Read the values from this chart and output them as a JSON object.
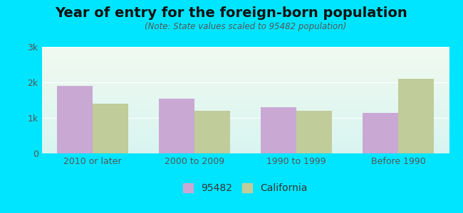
{
  "title": "Year of entry for the foreign-born population",
  "subtitle": "(Note: State values scaled to 95482 population)",
  "categories": [
    "2010 or later",
    "2000 to 2009",
    "1990 to 1999",
    "Before 1990"
  ],
  "values_95482": [
    1900,
    1550,
    1300,
    1150
  ],
  "values_california": [
    1400,
    1200,
    1200,
    2100
  ],
  "bar_color_95482": "#c9a8d4",
  "bar_color_california": "#c0cc99",
  "background_outer": "#00e5ff",
  "background_inner_top": "#f0f9f0",
  "background_inner_bottom": "#d8f4f0",
  "ylim": [
    0,
    3000
  ],
  "yticks": [
    0,
    1000,
    2000,
    3000
  ],
  "ytick_labels": [
    "0",
    "1k",
    "2k",
    "3k"
  ],
  "legend_label_1": "95482",
  "legend_label_2": "California",
  "bar_width": 0.35,
  "title_fontsize": 14,
  "subtitle_fontsize": 8.5,
  "axis_fontsize": 9,
  "legend_fontsize": 10
}
